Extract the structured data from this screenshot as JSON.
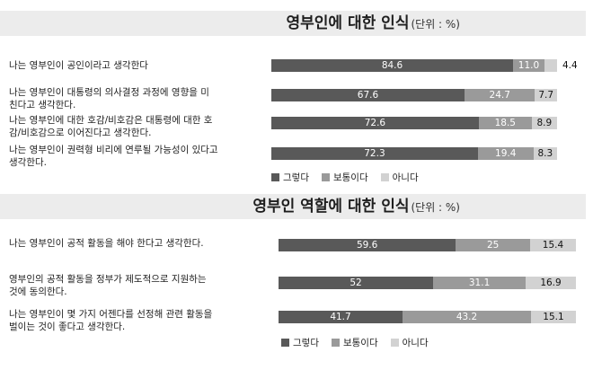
{
  "chart_data": [
    {
      "type": "bar",
      "title": "영부인에 대한 인식",
      "unit": "(단위 : %)",
      "categories": [
        "나는 영부인이 공인이라고 생각한다",
        "나는 영부인이 대통령의 의사결정 과정에 영향을 미친다고 생각한다.",
        "나는 영부인에 대한 호감/비호감은 대통령에 대한 호감/비호감으로 이어진다고 생각한다.",
        "나는 영부인이 권력형 비리에 연루될 가능성이 있다고 생각한다."
      ],
      "series": [
        {
          "name": "그렇다",
          "values": [
            84.6,
            67.6,
            72.6,
            72.3
          ]
        },
        {
          "name": "보통이다",
          "values": [
            11.0,
            24.7,
            18.5,
            19.4
          ]
        },
        {
          "name": "아니다",
          "values": [
            4.4,
            7.7,
            8.9,
            8.3
          ]
        }
      ],
      "labels": [
        [
          "84.6",
          "11.0",
          "4.4"
        ],
        [
          "67.6",
          "24.7",
          "7.7"
        ],
        [
          "72.6",
          "18.5",
          "8.9"
        ],
        [
          "72.3",
          "19.4",
          "8.3"
        ]
      ],
      "stacked": true,
      "orientation": "horizontal",
      "legend_position": "bottom",
      "colors": [
        "#595959",
        "#9a9a9a",
        "#d2d2d2"
      ]
    },
    {
      "type": "bar",
      "title": "영부인 역할에 대한 인식",
      "unit": "(단위 : %)",
      "categories": [
        "나는 영부인이 공적 활동을 해야 한다고 생각한다.",
        "영부인의 공적 활동을 정부가 제도적으로 지원하는 것에 동의한다.",
        "나는 영부인이 몇 가지 어젠다를 선정해 관련 활동을 벌이는 것이 좋다고 생각한다."
      ],
      "series": [
        {
          "name": "그렇다",
          "values": [
            59.6,
            52,
            41.7
          ]
        },
        {
          "name": "보통이다",
          "values": [
            25,
            31.1,
            43.2
          ]
        },
        {
          "name": "아니다",
          "values": [
            15.4,
            16.9,
            15.1
          ]
        }
      ],
      "labels": [
        [
          "59.6",
          "25",
          "15.4"
        ],
        [
          "52",
          "31.1",
          "16.9"
        ],
        [
          "41.7",
          "43.2",
          "15.1"
        ]
      ],
      "stacked": true,
      "orientation": "horizontal",
      "legend_position": "bottom",
      "colors": [
        "#595959",
        "#9a9a9a",
        "#d2d2d2"
      ]
    }
  ],
  "question_lines": [
    [
      [
        "나는 영부인이 공인이라고 생각한다"
      ],
      [
        "나는 영부인이 대통령의 의사결정 과정에 영향을 미",
        "친다고 생각한다."
      ],
      [
        "나는 영부인에 대한 호감/비호감은 대통령에 대한 호",
        "감/비호감으로 이어진다고 생각한다."
      ],
      [
        "나는 영부인이 권력형 비리에 연루될 가능성이 있다고",
        "생각한다."
      ]
    ],
    [
      [
        "나는 영부인이 공적 활동을 해야 한다고 생각한다."
      ],
      [
        "영부인의 공적 활동을 정부가 제도적으로 지원하는",
        "것에 동의한다."
      ],
      [
        "나는 영부인이 몇 가지 어젠다를 선정해 관련 활동을",
        "벌이는 것이 좋다고 생각한다."
      ]
    ]
  ]
}
